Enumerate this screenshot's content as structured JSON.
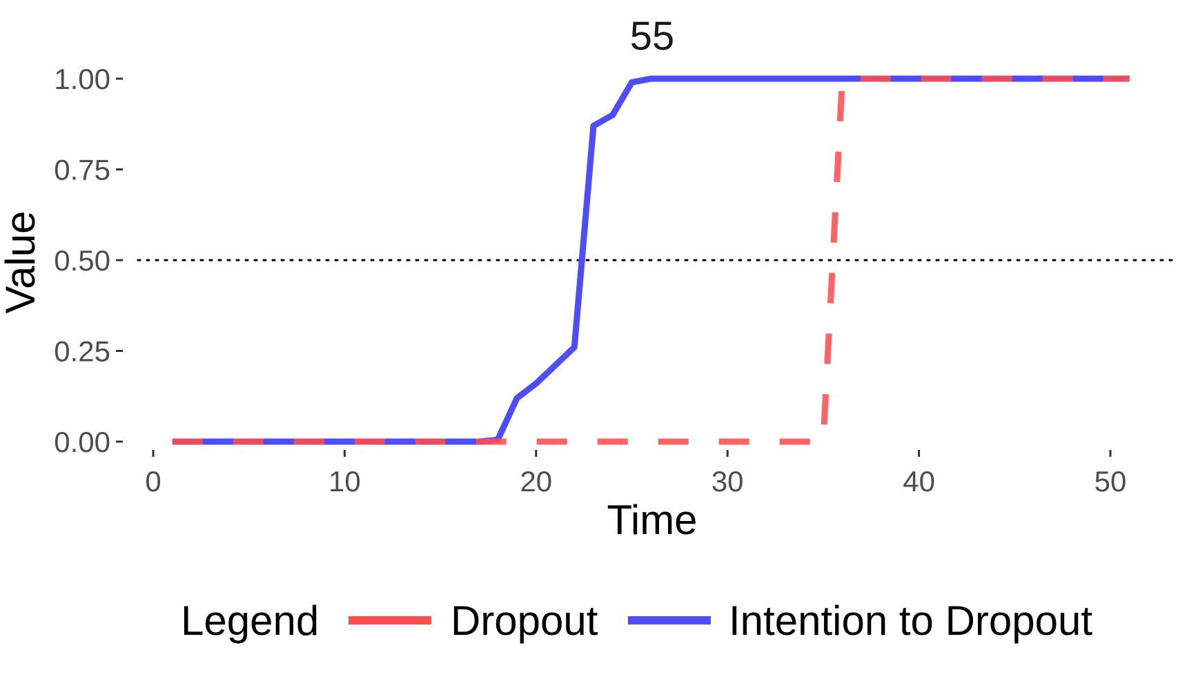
{
  "chart_data": {
    "type": "line",
    "title": "55",
    "xlabel": "Time",
    "ylabel": "Value",
    "xlim": [
      0,
      51
    ],
    "ylim": [
      0,
      1
    ],
    "x_ticks": [
      "0",
      "10",
      "20",
      "30",
      "40",
      "50"
    ],
    "y_ticks": [
      "0.00",
      "0.25",
      "0.50",
      "0.75",
      "1.00"
    ],
    "grid": false,
    "reference_line": {
      "y": 0.5,
      "style": "dotted",
      "color": "#000000"
    },
    "legend": {
      "title": "Legend",
      "position": "bottom",
      "entries": [
        "Dropout",
        "Intention to Dropout"
      ]
    },
    "series": [
      {
        "name": "Dropout",
        "color": "#ff4d4d",
        "dash": "dashed",
        "x": [
          1,
          2,
          3,
          4,
          5,
          6,
          7,
          8,
          9,
          10,
          11,
          12,
          13,
          14,
          15,
          16,
          17,
          18,
          19,
          20,
          21,
          22,
          23,
          24,
          25,
          26,
          27,
          28,
          29,
          30,
          31,
          32,
          33,
          34,
          35,
          36,
          37,
          38,
          39,
          40,
          41,
          42,
          43,
          44,
          45,
          46,
          47,
          48,
          49,
          50,
          51
        ],
        "y": [
          0,
          0,
          0,
          0,
          0,
          0,
          0,
          0,
          0,
          0,
          0,
          0,
          0,
          0,
          0,
          0,
          0,
          0,
          0,
          0,
          0,
          0,
          0,
          0,
          0,
          0,
          0,
          0,
          0,
          0,
          0,
          0,
          0,
          0,
          0,
          1,
          1,
          1,
          1,
          1,
          1,
          1,
          1,
          1,
          1,
          1,
          1,
          1,
          1,
          1,
          1
        ]
      },
      {
        "name": "Intention to Dropout",
        "color": "#4d4dff",
        "dash": "solid",
        "x": [
          1,
          2,
          3,
          4,
          5,
          6,
          7,
          8,
          9,
          10,
          11,
          12,
          13,
          14,
          15,
          16,
          17,
          18,
          19,
          20,
          21,
          22,
          23,
          24,
          25,
          26,
          27,
          28,
          29,
          30,
          31,
          32,
          33,
          34,
          35,
          36,
          37,
          38,
          39,
          40,
          41,
          42,
          43,
          44,
          45,
          46,
          47,
          48,
          49,
          50,
          51
        ],
        "y": [
          0,
          0,
          0,
          0,
          0,
          0,
          0,
          0,
          0,
          0,
          0,
          0,
          0,
          0,
          0,
          0,
          0,
          0.005,
          0.12,
          0.16,
          0.21,
          0.26,
          0.87,
          0.9,
          0.99,
          1,
          1,
          1,
          1,
          1,
          1,
          1,
          1,
          1,
          1,
          1,
          1,
          1,
          1,
          1,
          1,
          1,
          1,
          1,
          1,
          1,
          1,
          1,
          1,
          1,
          1
        ]
      }
    ]
  }
}
